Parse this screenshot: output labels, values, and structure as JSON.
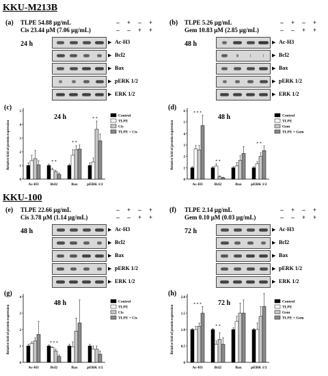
{
  "section1": {
    "title": "KKU-M213B"
  },
  "section2": {
    "title": "KKU-100"
  },
  "panels": [
    {
      "label": "(a)",
      "t1": "TLPE  54.88 µg/mL",
      "t2": "Cis 23.44 µM (7.06 µg/mL)",
      "row1": [
        "–",
        "+",
        "–",
        "+"
      ],
      "row2": [
        "–",
        "–",
        "+",
        "+"
      ],
      "time": "24 h",
      "proteins": [
        "Ac-H3",
        "Bcl2",
        "Bax",
        "pERK 1/2",
        "ERK 1/2"
      ]
    },
    {
      "label": "(b)",
      "t1": "TLPE  5.26 µg/mL",
      "t2": "Gem 10.83 µM (2.85 µg/mL)",
      "row1": [
        "–",
        "+",
        "–",
        "+"
      ],
      "row2": [
        "–",
        "–",
        "+",
        "+"
      ],
      "time": "48 h",
      "proteins": [
        "Ac-H3",
        "Bcl2",
        "Bax",
        "pERK 1/2",
        "ERK 1/2"
      ]
    },
    {
      "label": "(e)",
      "t1": "TLPE  22.66 µg/mL",
      "t2": "Cis 3.78 µM (1.14 µg/mL)",
      "row1": [
        "–",
        "+",
        "–",
        "+"
      ],
      "row2": [
        "–",
        "–",
        "+",
        "+"
      ],
      "time": "48 h",
      "proteins": [
        "Ac-H3",
        "Bcl2",
        "Bax",
        "pERK 1/2",
        "ERK 1/2"
      ]
    },
    {
      "label": "(f)",
      "t1": "TLPE  2.14 µg/mL",
      "t2": "Gem 0.10 µM (0.03 µg/mL)",
      "row1": [
        "–",
        "+",
        "–",
        "+"
      ],
      "row2": [
        "–",
        "–",
        "+",
        "+"
      ],
      "time": "72 h",
      "proteins": [
        "Ac-H3",
        "Bcl2",
        "Bax",
        "pERK 1/2",
        "ERK 1/2"
      ]
    }
  ],
  "chart_data": [
    {
      "label": "(c)",
      "type": "bar",
      "title": "24 h",
      "ylabel": "Relative fold of protein expression",
      "categories": [
        "Ac-H3",
        "Bcl2",
        "Bax",
        "pERK 1/2"
      ],
      "ylim": [
        0,
        5
      ],
      "yticks": [
        0,
        1,
        2,
        3,
        4,
        5
      ],
      "series": [
        {
          "name": "Control",
          "values": [
            1.0,
            1.0,
            1.0,
            1.0
          ],
          "err": [
            0.2,
            0.1,
            0.1,
            0.2
          ]
        },
        {
          "name": "TLPE",
          "values": [
            1.35,
            0.7,
            1.75,
            1.25
          ],
          "err": [
            0.4,
            0.1,
            0.4,
            0.3
          ]
        },
        {
          "name": "Cis",
          "values": [
            1.5,
            0.55,
            2.15,
            3.65
          ],
          "err": [
            0.6,
            0.1,
            0.3,
            0.6
          ]
        },
        {
          "name": "TLPE + Cis",
          "values": [
            1.05,
            0.35,
            2.2,
            2.8
          ],
          "err": [
            0.3,
            0.1,
            0.3,
            0.5
          ]
        }
      ],
      "annotations": [
        {
          "category": "Bcl2",
          "text": "* *"
        },
        {
          "category": "Bax",
          "text": "* *"
        },
        {
          "category": "pERK 1/2",
          "text": "* *"
        }
      ]
    },
    {
      "label": "(d)",
      "type": "bar",
      "title": "48 h",
      "ylabel": "Relative fold of protein expression",
      "categories": [
        "Ac-H3",
        "Bcl2",
        "Bax",
        "pERK 1/2"
      ],
      "ylim": [
        0,
        6
      ],
      "yticks": [
        0,
        1,
        2,
        3,
        4,
        5,
        6
      ],
      "series": [
        {
          "name": "Control",
          "values": [
            1.0,
            1.0,
            1.0,
            1.0
          ],
          "err": [
            0.1,
            0.1,
            0.1,
            0.1
          ]
        },
        {
          "name": "TLPE",
          "values": [
            2.65,
            1.15,
            1.15,
            1.35
          ],
          "err": [
            0.3,
            0.2,
            0.3,
            0.2
          ]
        },
        {
          "name": "Gem",
          "values": [
            2.55,
            0.2,
            1.65,
            2.0
          ],
          "err": [
            0.4,
            0.1,
            0.4,
            0.3
          ]
        },
        {
          "name": "TLPE + Gem",
          "values": [
            4.7,
            0.12,
            2.25,
            2.5
          ],
          "err": [
            0.9,
            0.05,
            0.6,
            0.4
          ]
        }
      ],
      "annotations": [
        {
          "category": "Ac-H3",
          "text": "* * *"
        },
        {
          "category": "Bcl2",
          "text": "* *"
        },
        {
          "category": "pERK 1/2",
          "text": "* *"
        }
      ]
    },
    {
      "label": "(g)",
      "type": "bar",
      "title": "48 h",
      "ylabel": "Relative fold of protein expression",
      "categories": [
        "Ac-H3",
        "Bcl2",
        "Bax",
        "pERK 1/2"
      ],
      "ylim": [
        0,
        4
      ],
      "yticks": [
        0,
        1,
        2,
        3,
        4
      ],
      "series": [
        {
          "name": "Control",
          "values": [
            1.0,
            1.0,
            1.0,
            1.0
          ],
          "err": [
            0.1,
            0.05,
            0.1,
            0.1
          ]
        },
        {
          "name": "TLPE",
          "values": [
            1.15,
            0.9,
            0.95,
            0.8
          ],
          "err": [
            0.1,
            0.05,
            0.3,
            0.2
          ]
        },
        {
          "name": "Cis",
          "values": [
            1.3,
            0.7,
            1.9,
            0.8
          ],
          "err": [
            0.2,
            0.1,
            0.8,
            0.2
          ]
        },
        {
          "name": "TLPE + Cis",
          "values": [
            1.7,
            0.35,
            2.4,
            0.5
          ],
          "err": [
            0.8,
            0.1,
            1.4,
            0.2
          ]
        }
      ],
      "annotations": [
        {
          "category": "Bcl2",
          "text": "* * *"
        }
      ]
    },
    {
      "label": "(h)",
      "type": "bar",
      "title": "72 h",
      "ylabel": "Relative fold of protein expression",
      "categories": [
        "Ac-H3",
        "Bcl2",
        "Bax",
        "pERK 1/2"
      ],
      "ylim": [
        0,
        2.0
      ],
      "yticks": [
        0,
        0.5,
        1.0,
        1.5,
        2.0
      ],
      "series": [
        {
          "name": "Control",
          "values": [
            1.0,
            1.0,
            1.0,
            1.0
          ],
          "err": [
            0.03,
            0.03,
            0.05,
            0.03
          ]
        },
        {
          "name": "TLPE",
          "values": [
            1.0,
            0.55,
            1.25,
            1.0
          ],
          "err": [
            0.1,
            0.1,
            0.15,
            0.2
          ]
        },
        {
          "name": "Gem",
          "values": [
            1.1,
            0.7,
            1.5,
            1.4
          ],
          "err": [
            0.1,
            0.2,
            0.3,
            0.3
          ]
        },
        {
          "name": "TLPE + Gem",
          "values": [
            1.5,
            0.55,
            1.5,
            1.7
          ],
          "err": [
            0.2,
            0.2,
            0.4,
            0.4
          ]
        }
      ],
      "annotations": [
        {
          "category": "Ac-H3",
          "text": "* * *"
        },
        {
          "category": "Bcl2",
          "text": "* *"
        }
      ]
    }
  ],
  "colors": {
    "Control": "#000000",
    "TLPE": "#ffffff",
    "series3": "#c8c8c8",
    "series4": "#8a8a8a"
  }
}
